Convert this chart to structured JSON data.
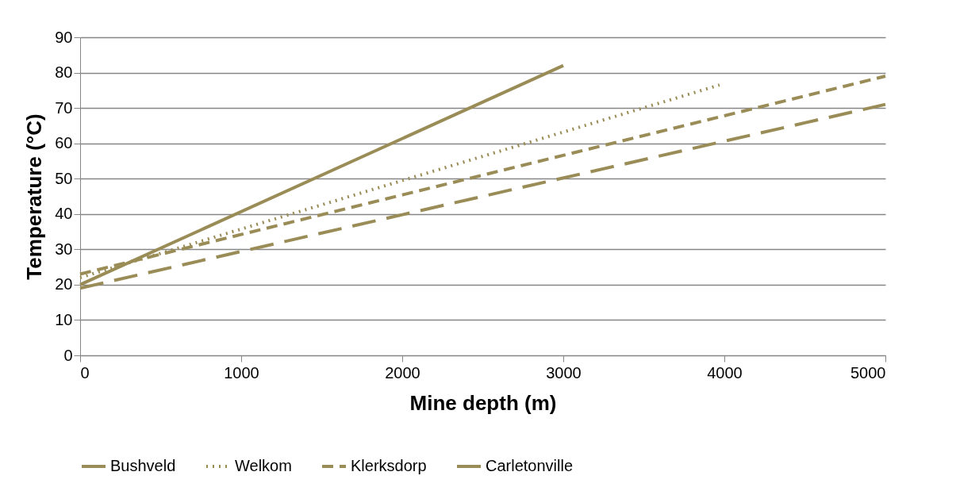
{
  "chart_data": {
    "type": "line",
    "xlabel": "Mine depth (m)",
    "ylabel": "Temperature (°C)",
    "series": [
      {
        "name": "Bushveld",
        "color": "#9a8c56",
        "line_style": "solid",
        "x": [
          0,
          3000
        ],
        "values": [
          20,
          82
        ]
      },
      {
        "name": "Welkom",
        "color": "#9a8c56",
        "line_style": "dotted",
        "x": [
          0,
          3970
        ],
        "values": [
          22,
          76.5
        ]
      },
      {
        "name": "Klerksdorp",
        "color": "#9a8c56",
        "line_style": "dashed",
        "x": [
          0,
          5000
        ],
        "values": [
          23,
          79
        ]
      },
      {
        "name": "Carletonville",
        "color": "#9a8c56",
        "line_style": "dashed",
        "x": [
          0,
          5000
        ],
        "values": [
          19,
          71
        ]
      }
    ],
    "xlim": [
      0,
      5000
    ],
    "xticks": [
      0,
      1000,
      2000,
      3000,
      4000,
      5000
    ],
    "ylim": [
      0,
      90
    ],
    "yticks": [
      0,
      10,
      20,
      30,
      40,
      50,
      60,
      70,
      80,
      90
    ],
    "grid": "y",
    "legend": "bottom",
    "marker": "none"
  }
}
